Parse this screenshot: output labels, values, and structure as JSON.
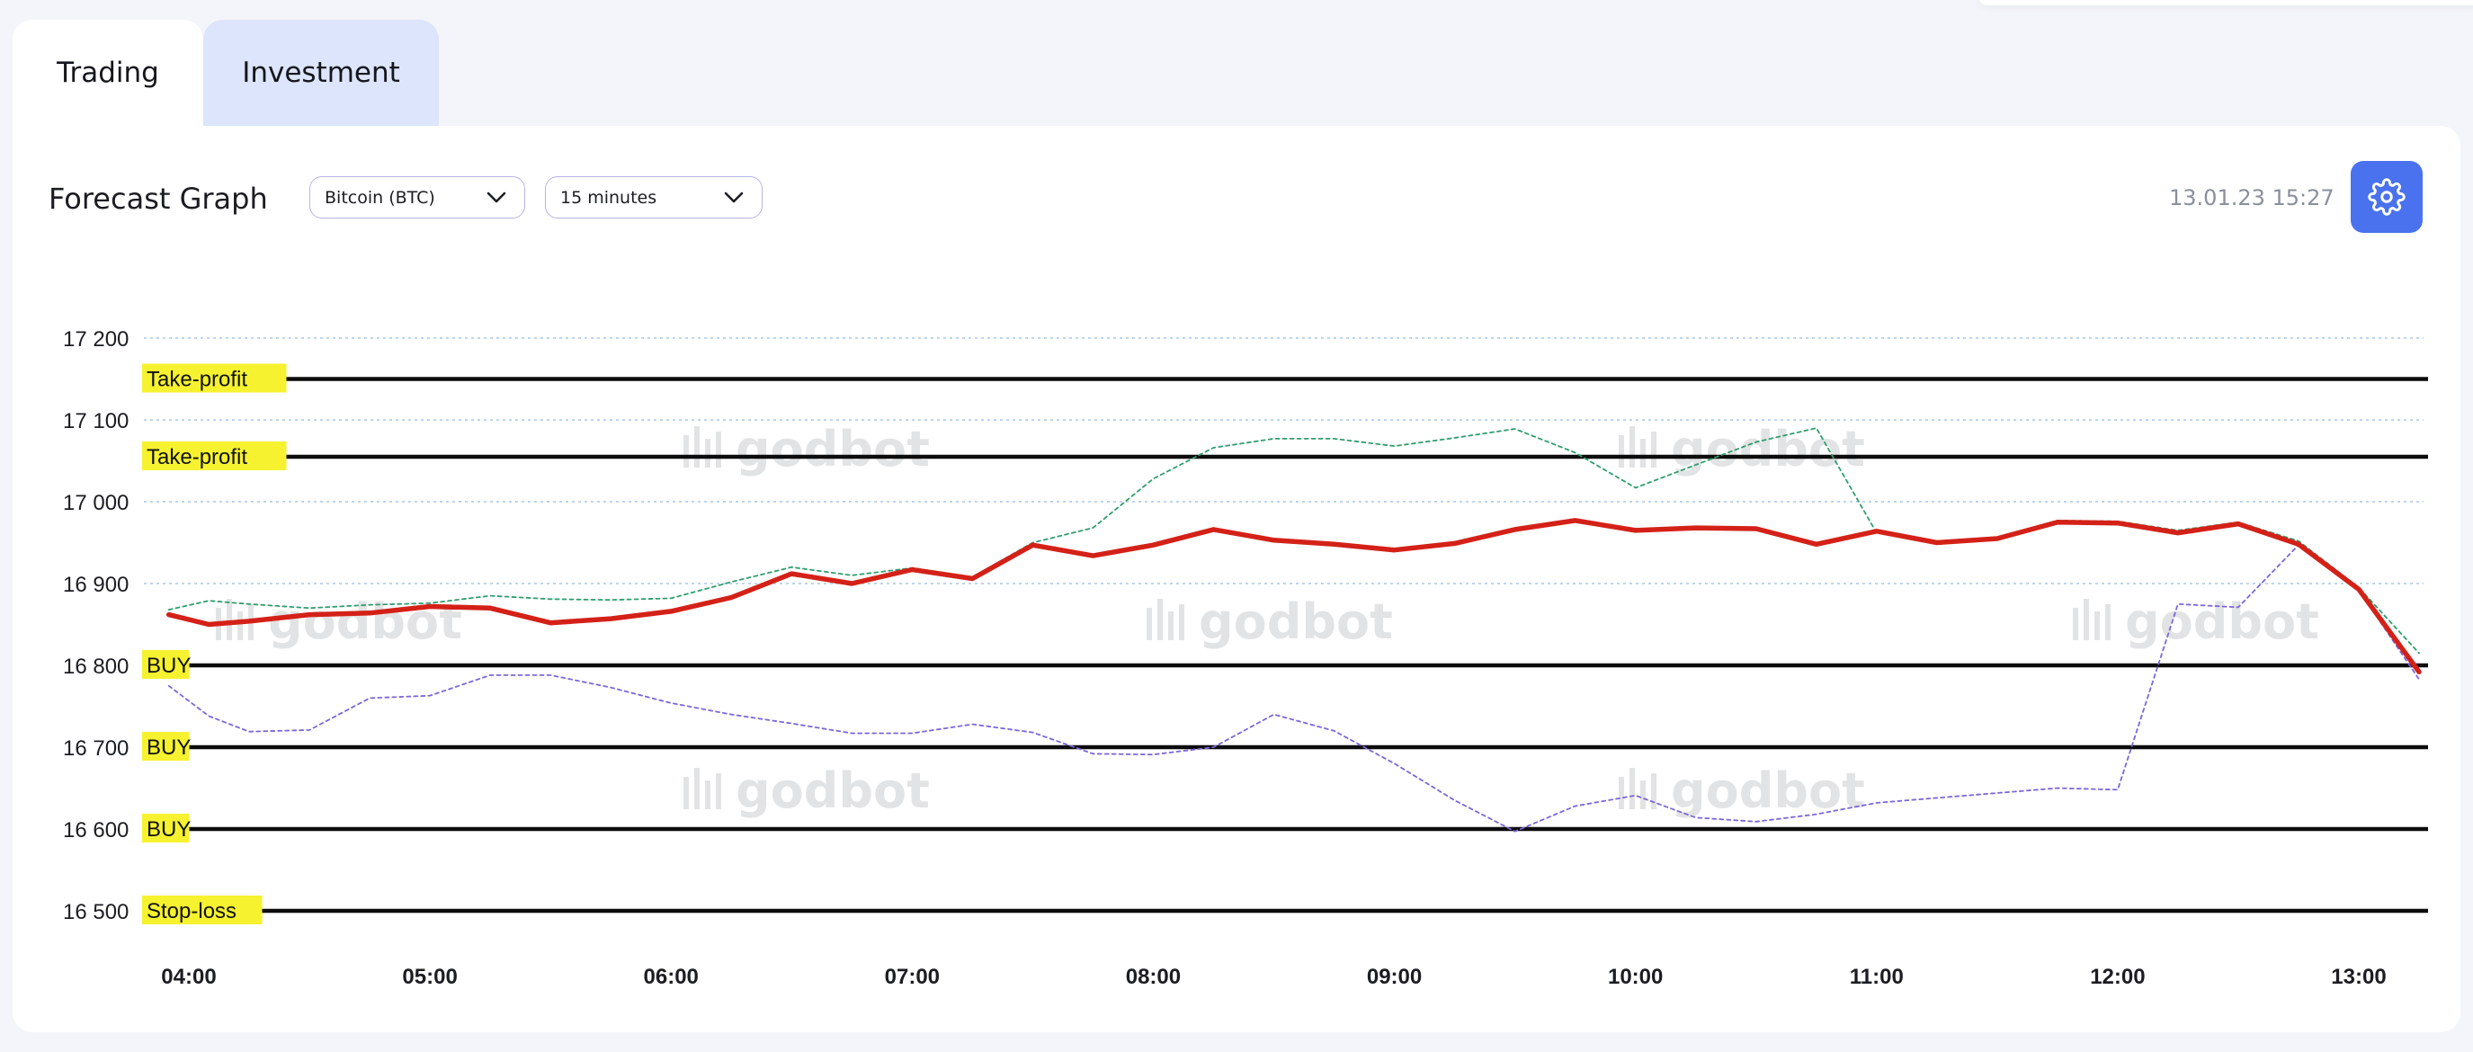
{
  "tabs": [
    {
      "label": "Trading",
      "active": true
    },
    {
      "label": "Investment",
      "active": false
    }
  ],
  "header": {
    "title": "Forecast Graph",
    "asset_select": "Bitcoin (BTC)",
    "interval_select": "15 minutes",
    "timestamp": "13.01.23 15:27"
  },
  "watermark": "godbot",
  "colors": {
    "accent": "#4a72ee",
    "forecast": "#d42118",
    "upper_band": "#2f9e6e",
    "lower_band": "#7d66d9",
    "level_label_bg": "#f6f22f"
  },
  "chart_data": {
    "type": "line",
    "xlabel": "",
    "ylabel": "",
    "x_ticks": [
      "04:00",
      "05:00",
      "06:00",
      "07:00",
      "08:00",
      "09:00",
      "10:00",
      "11:00",
      "12:00",
      "13:00"
    ],
    "y_ticks": [
      16500,
      16600,
      16700,
      16800,
      16900,
      17000,
      17100,
      17200
    ],
    "y_tick_labels": [
      "16 500",
      "16 600",
      "16 700",
      "16 800",
      "16 900",
      "17 000",
      "17 100",
      "17 200"
    ],
    "ylim": [
      16500,
      17200
    ],
    "xlim": [
      "04:00",
      "13:15"
    ],
    "grid": "horizontal-dotted",
    "x": [
      "03:55",
      "04:05",
      "04:15",
      "04:30",
      "04:45",
      "05:00",
      "05:15",
      "05:30",
      "05:45",
      "06:00",
      "06:15",
      "06:30",
      "06:45",
      "07:00",
      "07:15",
      "07:30",
      "07:45",
      "08:00",
      "08:15",
      "08:30",
      "08:45",
      "09:00",
      "09:15",
      "09:30",
      "09:45",
      "10:00",
      "10:15",
      "10:30",
      "10:45",
      "11:00",
      "11:15",
      "11:30",
      "11:45",
      "12:00",
      "12:15",
      "12:30",
      "12:45",
      "13:00",
      "13:15"
    ],
    "series": [
      {
        "role": "forecast",
        "values": [
          16862,
          16850,
          16854,
          16862,
          16864,
          16872,
          16870,
          16852,
          16857,
          16866,
          16883,
          16912,
          16900,
          16917,
          16906,
          16947,
          16934,
          16947,
          16966,
          16953,
          16948,
          16941,
          16949,
          16966,
          16977,
          16965,
          16968,
          16967,
          16948,
          16964,
          16950,
          16955,
          16975,
          16974,
          16962,
          16973,
          16948,
          16893,
          16792
        ]
      },
      {
        "role": "upper-band",
        "values": [
          16868,
          16879,
          16875,
          16870,
          16874,
          16876,
          16885,
          16881,
          16880,
          16882,
          16902,
          16920,
          16910,
          16919,
          16908,
          16950,
          16968,
          17028,
          17066,
          17077,
          17077,
          17068,
          17078,
          17089,
          17060,
          17017,
          17045,
          17073,
          17090,
          16962,
          16952,
          16956,
          16977,
          16976,
          16965,
          16975,
          16952,
          16895,
          16815
        ]
      },
      {
        "role": "lower-band",
        "values": [
          16775,
          16738,
          16719,
          16721,
          16760,
          16763,
          16788,
          16788,
          16773,
          16754,
          16740,
          16729,
          16717,
          16717,
          16728,
          16718,
          16692,
          16691,
          16700,
          16740,
          16720,
          16680,
          16635,
          16597,
          16628,
          16641,
          16614,
          16609,
          16618,
          16632,
          16638,
          16644,
          16650,
          16648,
          16875,
          16871,
          16947,
          16892,
          16783
        ]
      }
    ],
    "levels": [
      {
        "label": "Take-profit",
        "value": 17150
      },
      {
        "label": "Take-profit",
        "value": 17055
      },
      {
        "label": "BUY",
        "value": 16800
      },
      {
        "label": "BUY",
        "value": 16700
      },
      {
        "label": "BUY",
        "value": 16600
      },
      {
        "label": "Stop-loss",
        "value": 16500
      }
    ]
  }
}
